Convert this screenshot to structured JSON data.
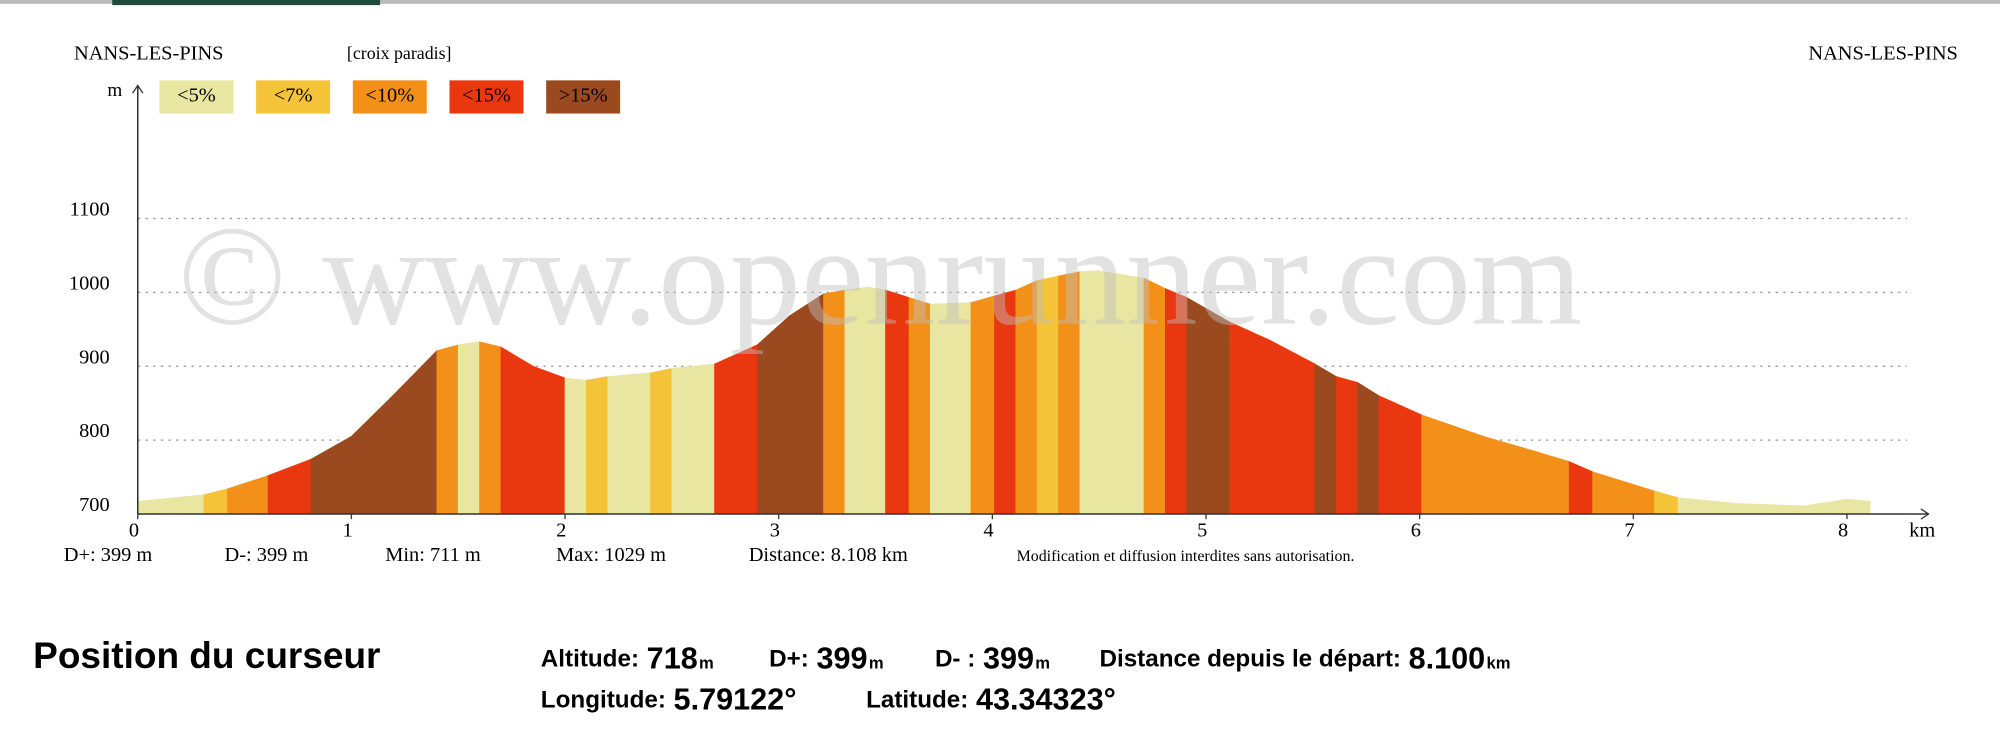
{
  "chart_data": {
    "type": "area",
    "start_label": "NANS-LES-PINS",
    "route_label": "[croix paradis]",
    "end_label": "NANS-LES-PINS",
    "ylabel": "m",
    "xlabel": "km",
    "watermark": "© www.openrunner.com",
    "legend": {
      "labels": [
        "<5%",
        "<7%",
        "<10%",
        "<15%",
        ">15%"
      ],
      "colors": [
        "#e8e6a0",
        "#f5c338",
        "#f39019",
        "#e9380f",
        "#9a4a1e"
      ]
    },
    "x": [
      0,
      0.31,
      0.42,
      0.61,
      0.81,
      1.0,
      1.2,
      1.4,
      1.5,
      1.6,
      1.7,
      1.85,
      2.0,
      2.1,
      2.2,
      2.4,
      2.5,
      2.7,
      2.9,
      3.05,
      3.21,
      3.31,
      3.42,
      3.5,
      3.61,
      3.71,
      3.9,
      4.01,
      4.11,
      4.21,
      4.31,
      4.41,
      4.5,
      4.71,
      4.81,
      4.91,
      5.11,
      5.3,
      5.51,
      5.61,
      5.71,
      5.81,
      6.01,
      6.3,
      6.55,
      6.7,
      6.81,
      7.1,
      7.21,
      7.5,
      7.8,
      8.0,
      8.108
    ],
    "values": [
      717,
      726,
      734,
      752,
      774,
      805,
      862,
      921,
      929,
      933,
      926,
      900,
      884,
      881,
      886,
      891,
      897,
      903,
      929,
      968,
      998,
      1003,
      1007,
      1003,
      993,
      984,
      986,
      995,
      1003,
      1016,
      1022,
      1028,
      1029,
      1019,
      1005,
      993,
      960,
      935,
      903,
      886,
      878,
      860,
      834,
      805,
      784,
      771,
      757,
      731,
      722,
      714,
      711,
      720,
      717
    ],
    "segment_colors": [
      "#e8e6a0",
      "#f5c338",
      "#f39019",
      "#e9380f",
      "#9a4a1e",
      "#9a4a1e",
      "#9a4a1e",
      "#f39019",
      "#e8e6a0",
      "#f39019",
      "#e9380f",
      "#e9380f",
      "#e8e6a0",
      "#f5c338",
      "#e8e6a0",
      "#f5c338",
      "#e8e6a0",
      "#e9380f",
      "#9a4a1e",
      "#9a4a1e",
      "#f39019",
      "#e8e6a0",
      "#e8e6a0",
      "#e9380f",
      "#f39019",
      "#e8e6a0",
      "#f39019",
      "#e9380f",
      "#f39019",
      "#f5c338",
      "#f39019",
      "#e8e6a0",
      "#e8e6a0",
      "#f39019",
      "#e9380f",
      "#9a4a1e",
      "#e9380f",
      "#e9380f",
      "#9a4a1e",
      "#e9380f",
      "#9a4a1e",
      "#e9380f",
      "#f39019",
      "#f39019",
      "#f39019",
      "#e9380f",
      "#f39019",
      "#f5c338",
      "#e8e6a0",
      "#e8e6a0",
      "#e8e6a0",
      "#e8e6a0"
    ],
    "xlim": [
      0,
      8.34
    ],
    "xticks": [
      0,
      1,
      2,
      3,
      4,
      5,
      6,
      7,
      8
    ],
    "ylim": [
      700,
      1280
    ],
    "yticks": [
      700,
      800,
      900,
      1000,
      1100
    ],
    "grid": true,
    "stats": [
      "D+: 399 m",
      "D-: 399 m",
      "Min: 711 m",
      "Max: 1029 m",
      "Distance: 8.108 km"
    ],
    "notice": "Modification et diffusion interdites sans autorisation."
  },
  "cursor": {
    "title": "Position du curseur",
    "rows": [
      [
        {
          "label": "Altitude:",
          "value": "718",
          "unit": "m"
        },
        {
          "label": "D+:",
          "value": "399",
          "unit": "m"
        },
        {
          "label": "D- :",
          "value": "399",
          "unit": "m"
        },
        {
          "label": "Distance depuis le départ:",
          "value": "8.100",
          "unit": "km"
        }
      ],
      [
        {
          "label": "Longitude:",
          "value": "5.79122°",
          "unit": ""
        },
        {
          "label": "Latitude:",
          "value": "43.34323°",
          "unit": ""
        }
      ]
    ]
  }
}
